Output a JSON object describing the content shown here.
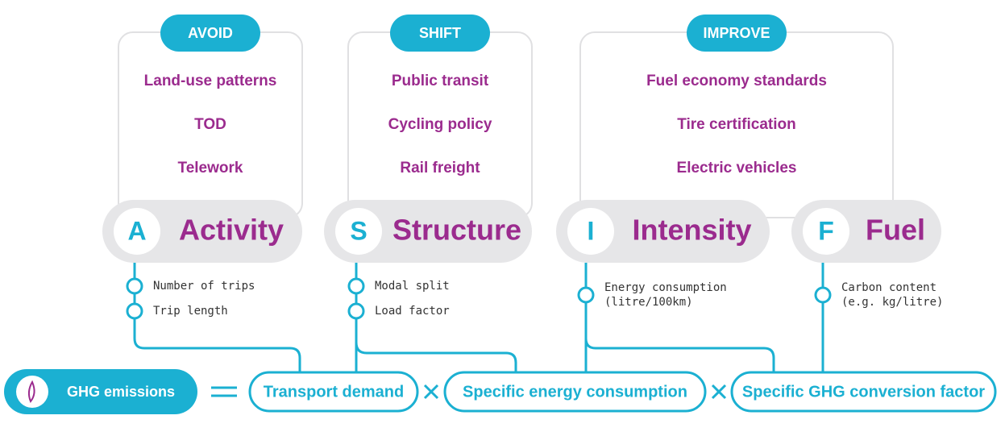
{
  "groups": [
    {
      "label": "AVOID",
      "items": [
        "Land-use patterns",
        "TOD",
        "Telework"
      ]
    },
    {
      "label": "SHIFT",
      "items": [
        "Public transit",
        "Cycling policy",
        "Rail freight"
      ]
    },
    {
      "label": "IMPROVE",
      "items": [
        "Fuel economy standards",
        "Tire certification",
        "Electric vehicles"
      ]
    }
  ],
  "factors": [
    {
      "letter": "A",
      "name": "Activity",
      "indicators": [
        [
          "Number of trips"
        ],
        [
          "Trip length"
        ]
      ]
    },
    {
      "letter": "S",
      "name": "Structure",
      "indicators": [
        [
          "Modal split"
        ],
        [
          "Load factor"
        ]
      ]
    },
    {
      "letter": "I",
      "name": "Intensity",
      "indicators": [
        [
          "Energy consumption",
          "(litre/100km)"
        ]
      ]
    },
    {
      "letter": "F",
      "name": "Fuel",
      "indicators": [
        [
          "Carbon content",
          "(e.g. kg/litre)"
        ]
      ]
    }
  ],
  "equation": {
    "result": "GHG emissions",
    "terms": [
      "Transport demand",
      "Specific energy consumption",
      "Specific GHG conversion factor"
    ]
  }
}
